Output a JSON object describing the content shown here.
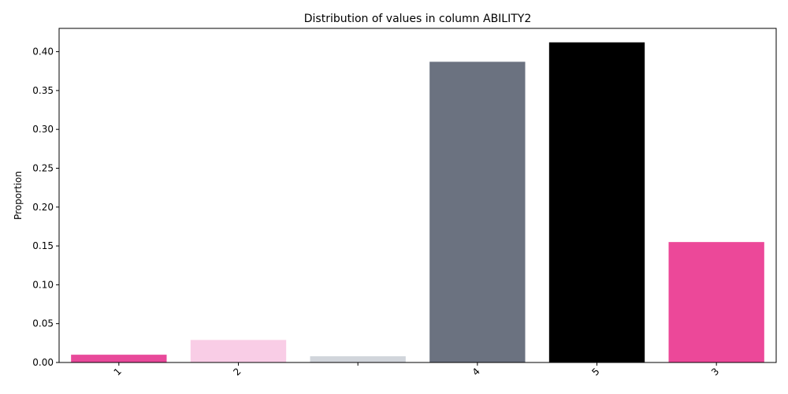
{
  "chart_data": {
    "type": "bar",
    "title": "Distribution of values in column ABILITY2",
    "xlabel": "",
    "ylabel": "Proportion",
    "categories": [
      "1",
      "2",
      "",
      "4",
      "5",
      "3"
    ],
    "values": [
      0.01,
      0.029,
      0.008,
      0.387,
      0.412,
      0.155
    ],
    "colors": [
      "#e8499a",
      "#f9cde6",
      "#d1d5db",
      "#6b7280",
      "#000000",
      "#ec4899"
    ],
    "ylim": [
      0,
      0.43
    ],
    "yticks": [
      0.0,
      0.05,
      0.1,
      0.15,
      0.2,
      0.25,
      0.3,
      0.35,
      0.4
    ],
    "ytick_labels": [
      "0.00",
      "0.05",
      "0.10",
      "0.15",
      "0.20",
      "0.25",
      "0.30",
      "0.35",
      "0.40"
    ],
    "grid": false,
    "legend": "none"
  }
}
